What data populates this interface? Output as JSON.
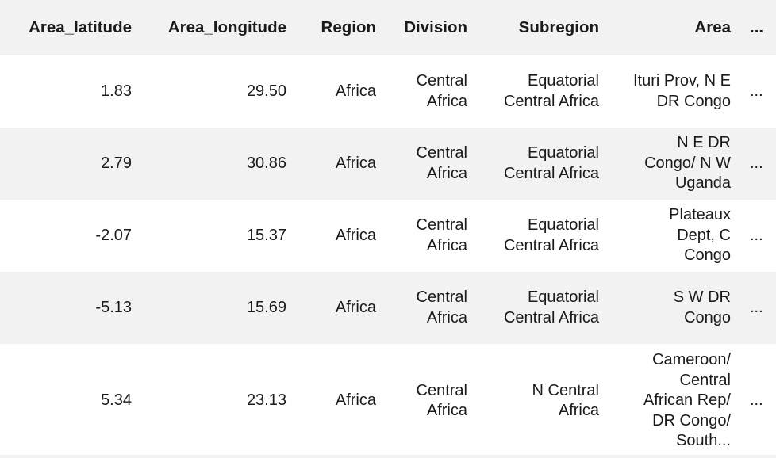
{
  "columns": {
    "lat": "Area_latitude",
    "lon": "Area_longitude",
    "region": "Region",
    "division": "Division",
    "subregion": "Subregion",
    "area": "Area",
    "more": "..."
  },
  "rows": [
    {
      "lat": "1.83",
      "lon": "29.50",
      "region": "Africa",
      "division": "Central Africa",
      "subregion": "Equatorial Central Africa",
      "area": "Ituri Prov, N E DR Congo",
      "more": "..."
    },
    {
      "lat": "2.79",
      "lon": "30.86",
      "region": "Africa",
      "division": "Central Africa",
      "subregion": "Equatorial Central Africa",
      "area": "N E DR Congo/ N W Uganda",
      "more": "..."
    },
    {
      "lat": "-2.07",
      "lon": "15.37",
      "region": "Africa",
      "division": "Central Africa",
      "subregion": "Equatorial Central Africa",
      "area": "Plateaux Dept, C Congo",
      "more": "..."
    },
    {
      "lat": "-5.13",
      "lon": "15.69",
      "region": "Africa",
      "division": "Central Africa",
      "subregion": "Equatorial Central Africa",
      "area": "S W DR Congo",
      "more": "..."
    },
    {
      "lat": "5.34",
      "lon": "23.13",
      "region": "Africa",
      "division": "Central Africa",
      "subregion": "N Central Africa",
      "area": "Cameroon/ Central African Rep/ DR Congo/ South...",
      "more": "..."
    }
  ]
}
